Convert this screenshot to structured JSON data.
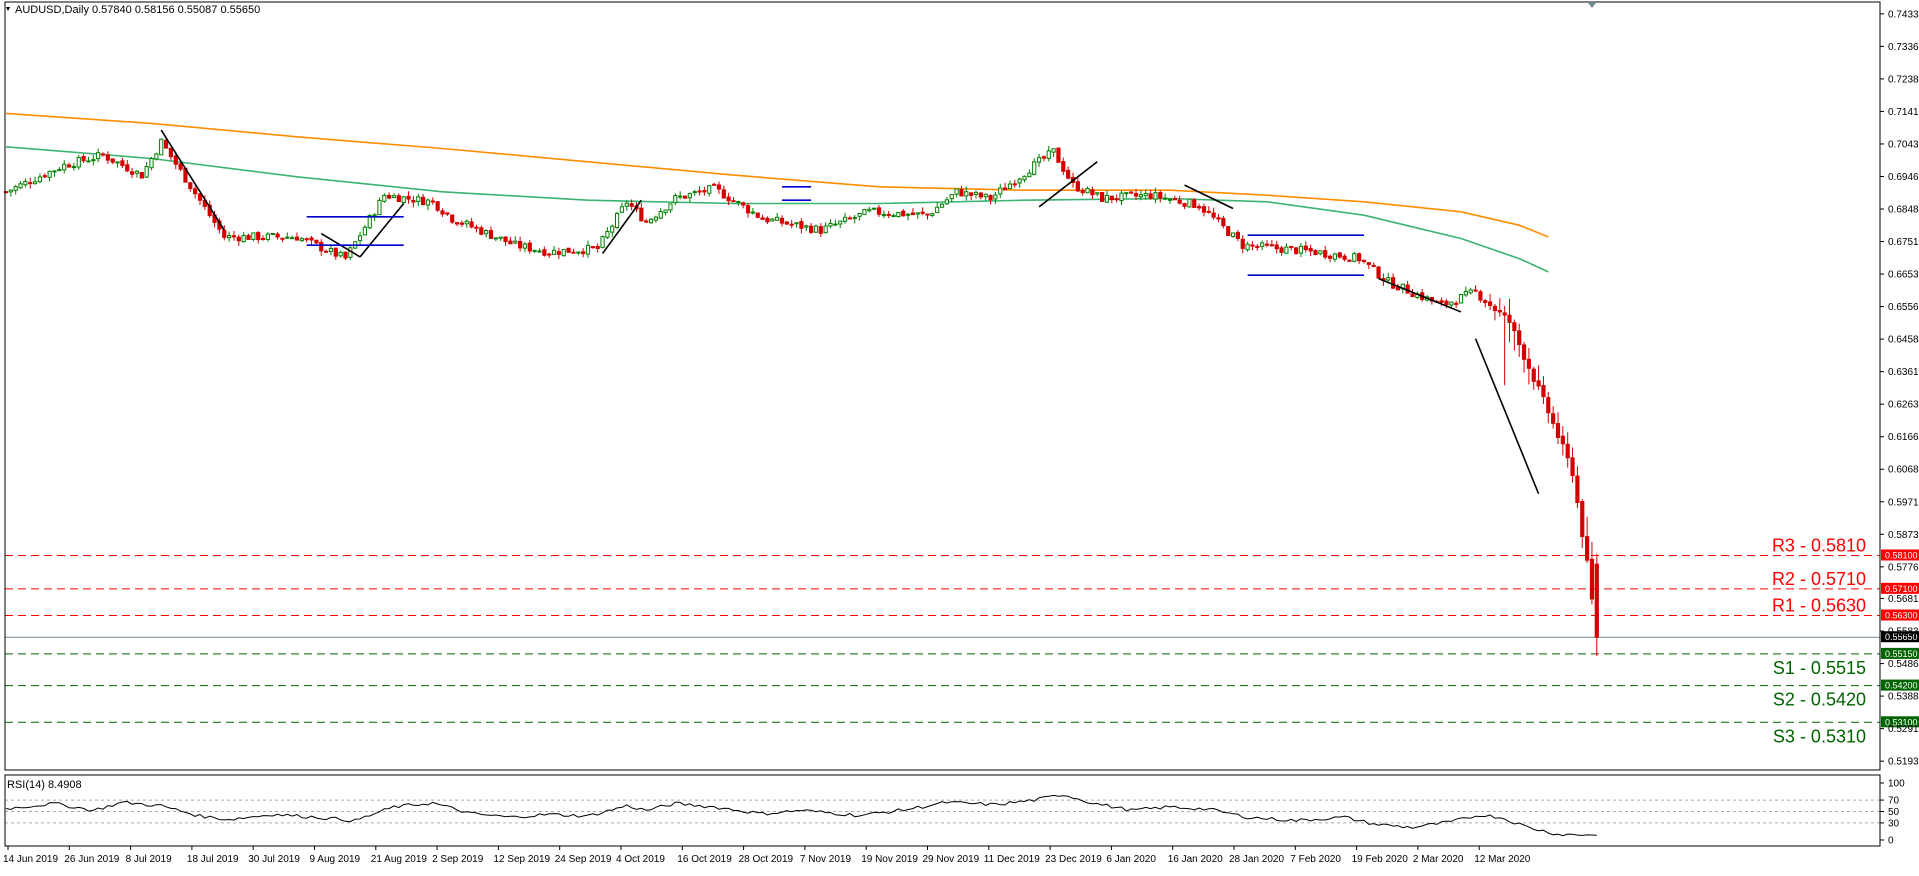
{
  "header": {
    "symbol": "AUDUSD,Daily",
    "ohlc": "0.57840 0.58156 0.55087 0.55650"
  },
  "rsi_header": "RSI(14) 8.4908",
  "chart_data": {
    "type": "candlestick",
    "symbol": "AUDUSD",
    "timeframe": "Daily",
    "last_bar": {
      "open": 0.5784,
      "high": 0.58156,
      "low": 0.55087,
      "close": 0.5565
    },
    "y_ticks": [
      "0.74335",
      "0.73360",
      "0.72385",
      "0.71410",
      "0.70435",
      "0.69460",
      "0.68485",
      "0.67510",
      "0.66535",
      "0.65560",
      "0.64585",
      "0.63610",
      "0.62635",
      "0.61660",
      "0.60685",
      "0.59710",
      "0.58735",
      "0.57760",
      "0.56810",
      "0.55835",
      "0.54860",
      "0.53885",
      "0.52910",
      "0.51935"
    ],
    "ylim": [
      0.5167,
      0.7445
    ],
    "x_ticks": [
      "14 Jun 2019",
      "26 Jun 2019",
      "8 Jul 2019",
      "18 Jul 2019",
      "30 Jul 2019",
      "9 Aug 2019",
      "21 Aug 2019",
      "2 Sep 2019",
      "12 Sep 2019",
      "24 Sep 2019",
      "4 Oct 2019",
      "16 Oct 2019",
      "28 Oct 2019",
      "7 Nov 2019",
      "19 Nov 2019",
      "29 Nov 2019",
      "11 Dec 2019",
      "23 Dec 2019",
      "6 Jan 2020",
      "16 Jan 2020",
      "28 Jan 2020",
      "7 Feb 2020",
      "19 Feb 2020",
      "2 Mar 2020",
      "12 Mar 2020"
    ],
    "price_path": [
      [
        0,
        0.69
      ],
      [
        12,
        0.698
      ],
      [
        20,
        0.701
      ],
      [
        28,
        0.695
      ],
      [
        32,
        0.705
      ],
      [
        42,
        0.683
      ],
      [
        45,
        0.6765
      ],
      [
        60,
        0.6765
      ],
      [
        70,
        0.67
      ],
      [
        78,
        0.689
      ],
      [
        88,
        0.687
      ],
      [
        92,
        0.682
      ],
      [
        105,
        0.674
      ],
      [
        112,
        0.672
      ],
      [
        122,
        0.673
      ],
      [
        128,
        0.687
      ],
      [
        132,
        0.681
      ],
      [
        138,
        0.688
      ],
      [
        146,
        0.691
      ],
      [
        156,
        0.682
      ],
      [
        168,
        0.6785
      ],
      [
        178,
        0.684
      ],
      [
        190,
        0.683
      ],
      [
        196,
        0.69
      ],
      [
        203,
        0.688
      ],
      [
        212,
        0.698
      ],
      [
        216,
        0.702
      ],
      [
        220,
        0.692
      ],
      [
        226,
        0.688
      ],
      [
        236,
        0.689
      ],
      [
        246,
        0.686
      ],
      [
        255,
        0.674
      ],
      [
        270,
        0.672
      ],
      [
        279,
        0.67
      ],
      [
        285,
        0.663
      ],
      [
        296,
        0.656
      ],
      [
        303,
        0.66
      ],
      [
        310,
        0.651
      ],
      [
        318,
        0.624
      ],
      [
        323,
        0.606
      ],
      [
        326,
        0.5784
      ],
      [
        328,
        0.5565
      ]
    ],
    "ma_fast": [
      [
        0,
        0.7035
      ],
      [
        30,
        0.7
      ],
      [
        60,
        0.6945
      ],
      [
        90,
        0.69
      ],
      [
        120,
        0.6875
      ],
      [
        150,
        0.6865
      ],
      [
        180,
        0.6865
      ],
      [
        210,
        0.6875
      ],
      [
        240,
        0.688
      ],
      [
        260,
        0.687
      ],
      [
        280,
        0.683
      ],
      [
        300,
        0.676
      ],
      [
        312,
        0.67
      ],
      [
        318,
        0.666
      ]
    ],
    "ma_slow": [
      [
        0,
        0.7135
      ],
      [
        30,
        0.7105
      ],
      [
        60,
        0.7065
      ],
      [
        90,
        0.703
      ],
      [
        120,
        0.699
      ],
      [
        150,
        0.695
      ],
      [
        180,
        0.6915
      ],
      [
        210,
        0.6905
      ],
      [
        240,
        0.6905
      ],
      [
        260,
        0.689
      ],
      [
        280,
        0.687
      ],
      [
        300,
        0.684
      ],
      [
        312,
        0.68
      ],
      [
        318,
        0.6765
      ]
    ],
    "trendlines": [
      {
        "from": [
          32,
          0.7085
        ],
        "to": [
          45,
          0.6785
        ]
      },
      {
        "from": [
          65,
          0.6775
        ],
        "to": [
          73,
          0.6705
        ]
      },
      {
        "from": [
          73,
          0.6705
        ],
        "to": [
          82,
          0.6865
        ]
      },
      {
        "from": [
          123,
          0.6715
        ],
        "to": [
          131,
          0.6875
        ]
      },
      {
        "from": [
          213,
          0.6855
        ],
        "to": [
          225,
          0.699
        ]
      },
      {
        "from": [
          243,
          0.692
        ],
        "to": [
          253,
          0.685
        ]
      },
      {
        "from": [
          283,
          0.664
        ],
        "to": [
          300,
          0.654
        ]
      },
      {
        "from": [
          303,
          0.646
        ],
        "to": [
          316,
          0.5995
        ]
      }
    ],
    "ranges": [
      {
        "from": [
          62,
          0.6825
        ],
        "to": [
          82,
          0.674
        ]
      },
      {
        "from": [
          160,
          0.6915
        ],
        "to": [
          166,
          0.6875
        ]
      },
      {
        "from": [
          256,
          0.677
        ],
        "to": [
          280,
          0.665
        ]
      }
    ],
    "levels": [
      {
        "label": "R3 - 0.5810",
        "value": 0.581,
        "tag": "0.58100",
        "kind": "resistance",
        "color": "#ff0000"
      },
      {
        "label": "R2 - 0.5710",
        "value": 0.571,
        "tag": "0.57100",
        "kind": "resistance",
        "color": "#ff0000"
      },
      {
        "label": "R1 - 0.5630",
        "value": 0.563,
        "tag": "0.56300",
        "kind": "resistance",
        "color": "#ff0000"
      },
      {
        "label": "S1 - 0.5515",
        "value": 0.5515,
        "tag": "0.55150",
        "kind": "support",
        "color": "#006400"
      },
      {
        "label": "S2 - 0.5420",
        "value": 0.542,
        "tag": "0.54200",
        "kind": "support",
        "color": "#006400"
      },
      {
        "label": "S3 - 0.5310",
        "value": 0.531,
        "tag": "0.53100",
        "kind": "support",
        "color": "#006400"
      }
    ],
    "bid": {
      "value": 0.5565,
      "tag": "0.55650"
    },
    "rsi": {
      "period": 14,
      "last": 8.4908,
      "y_ticks": [
        "100",
        "70",
        "50",
        "30",
        "0"
      ],
      "levels": [
        70,
        50,
        30
      ],
      "path": [
        [
          0,
          55
        ],
        [
          10,
          64
        ],
        [
          18,
          52
        ],
        [
          24,
          66
        ],
        [
          32,
          60
        ],
        [
          40,
          42
        ],
        [
          46,
          36
        ],
        [
          55,
          45
        ],
        [
          64,
          40
        ],
        [
          72,
          34
        ],
        [
          80,
          58
        ],
        [
          88,
          65
        ],
        [
          96,
          46
        ],
        [
          104,
          40
        ],
        [
          112,
          45
        ],
        [
          120,
          42
        ],
        [
          128,
          60
        ],
        [
          132,
          52
        ],
        [
          138,
          64
        ],
        [
          146,
          58
        ],
        [
          156,
          46
        ],
        [
          164,
          52
        ],
        [
          176,
          43
        ],
        [
          186,
          54
        ],
        [
          194,
          66
        ],
        [
          204,
          62
        ],
        [
          212,
          70
        ],
        [
          218,
          80
        ],
        [
          224,
          65
        ],
        [
          232,
          52
        ],
        [
          240,
          58
        ],
        [
          248,
          54
        ],
        [
          256,
          40
        ],
        [
          266,
          34
        ],
        [
          276,
          40
        ],
        [
          282,
          28
        ],
        [
          290,
          22
        ],
        [
          298,
          32
        ],
        [
          304,
          44
        ],
        [
          308,
          40
        ],
        [
          314,
          22
        ],
        [
          320,
          10
        ],
        [
          328,
          8.5
        ]
      ]
    },
    "colors": {
      "bull": "#008000",
      "bear": "#d40000",
      "wick": "#000000",
      "ma_fast": "#3cb371",
      "ma_slow": "#ff8c00",
      "range": "#0000cd",
      "trendline": "#000000",
      "bid_line": "#778899"
    }
  }
}
